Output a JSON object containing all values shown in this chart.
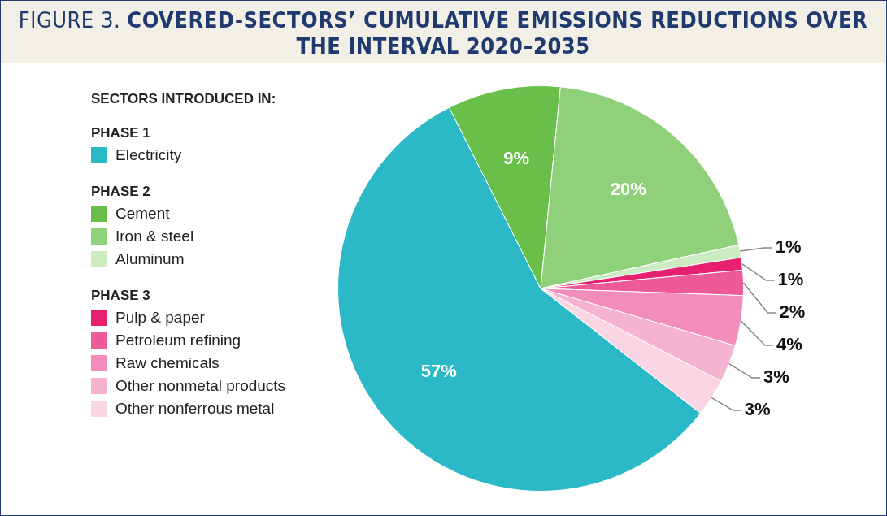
{
  "chart_data": {
    "type": "pie",
    "title": "FIGURE 3. COVERED-SECTORS’ CUMULATIVE EMISSIONS REDUCTIONS OVER THE INTERVAL 2020–2035",
    "legend_title": "SECTORS INTRODUCED IN:",
    "annotations": [
      "PHASE 1",
      "PHASE 2",
      "PHASE 3"
    ],
    "categories": [
      "Electricity",
      "Cement",
      "Iron & steel",
      "Aluminum",
      "Pulp & paper",
      "Petroleum refining",
      "Raw chemicals",
      "Other nonmetal products",
      "Other nonferrous metal"
    ],
    "values": [
      57,
      9,
      20,
      1,
      1,
      2,
      4,
      3,
      3
    ],
    "value_labels": [
      "57%",
      "9%",
      "20%",
      "1%",
      "1%",
      "2%",
      "4%",
      "3%",
      "3%"
    ],
    "colors": [
      "#2cb9c7",
      "#6abf4b",
      "#8fd07a",
      "#cdebc2",
      "#e8216f",
      "#ee5a96",
      "#f28cb8",
      "#f5b3cf",
      "#fad6e5"
    ],
    "legend": "left"
  }
}
